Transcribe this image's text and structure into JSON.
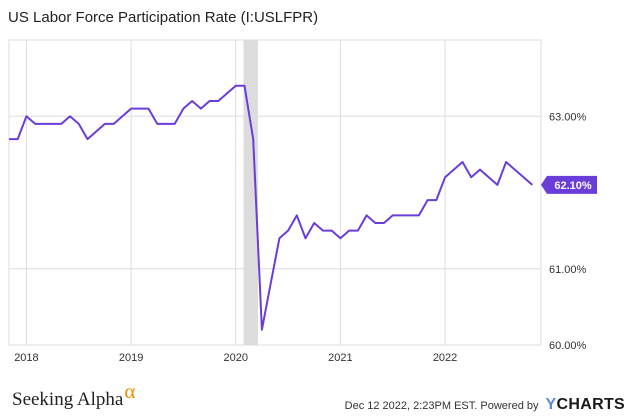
{
  "header": {
    "title": "US Labor Force Participation Rate (I:USLFPR)"
  },
  "chart_data": {
    "type": "line",
    "title": "US Labor Force Participation Rate (I:USLFPR)",
    "xlabel": "",
    "ylabel": "",
    "x_ticks": [
      "2018",
      "2019",
      "2020",
      "2021",
      "2022"
    ],
    "y_ticks": [
      {
        "value": 60.0,
        "label": "60.00%"
      },
      {
        "value": 61.0,
        "label": "61.00%"
      },
      {
        "value": 62.1,
        "label": "62.10%"
      },
      {
        "value": 63.0,
        "label": "63.00%"
      }
    ],
    "ylim": [
      60.0,
      64.0
    ],
    "xlim": [
      "2017-11",
      "2022-12"
    ],
    "recession_shade": {
      "start": "2020-02",
      "end": "2020-04"
    },
    "series": [
      {
        "color": "#6a3ddb",
        "last_value_label": "62.10%",
        "points": [
          [
            "2017-11",
            62.7
          ],
          [
            "2017-12",
            62.7
          ],
          [
            "2018-01",
            63.0
          ],
          [
            "2018-02",
            62.9
          ],
          [
            "2018-03",
            62.9
          ],
          [
            "2018-04",
            62.9
          ],
          [
            "2018-05",
            62.9
          ],
          [
            "2018-06",
            63.0
          ],
          [
            "2018-07",
            62.9
          ],
          [
            "2018-08",
            62.7
          ],
          [
            "2018-09",
            62.8
          ],
          [
            "2018-10",
            62.9
          ],
          [
            "2018-11",
            62.9
          ],
          [
            "2018-12",
            63.0
          ],
          [
            "2019-01",
            63.1
          ],
          [
            "2019-02",
            63.1
          ],
          [
            "2019-03",
            63.1
          ],
          [
            "2019-04",
            62.9
          ],
          [
            "2019-05",
            62.9
          ],
          [
            "2019-06",
            62.9
          ],
          [
            "2019-07",
            63.1
          ],
          [
            "2019-08",
            63.2
          ],
          [
            "2019-09",
            63.1
          ],
          [
            "2019-10",
            63.2
          ],
          [
            "2019-11",
            63.2
          ],
          [
            "2019-12",
            63.3
          ],
          [
            "2020-01",
            63.4
          ],
          [
            "2020-02",
            63.4
          ],
          [
            "2020-03",
            62.7
          ],
          [
            "2020-04",
            60.2
          ],
          [
            "2020-05",
            60.8
          ],
          [
            "2020-06",
            61.4
          ],
          [
            "2020-07",
            61.5
          ],
          [
            "2020-08",
            61.7
          ],
          [
            "2020-09",
            61.4
          ],
          [
            "2020-10",
            61.6
          ],
          [
            "2020-11",
            61.5
          ],
          [
            "2020-12",
            61.5
          ],
          [
            "2021-01",
            61.4
          ],
          [
            "2021-02",
            61.5
          ],
          [
            "2021-03",
            61.5
          ],
          [
            "2021-04",
            61.7
          ],
          [
            "2021-05",
            61.6
          ],
          [
            "2021-06",
            61.6
          ],
          [
            "2021-07",
            61.7
          ],
          [
            "2021-08",
            61.7
          ],
          [
            "2021-09",
            61.7
          ],
          [
            "2021-10",
            61.7
          ],
          [
            "2021-11",
            61.9
          ],
          [
            "2021-12",
            61.9
          ],
          [
            "2022-01",
            62.2
          ],
          [
            "2022-02",
            62.3
          ],
          [
            "2022-03",
            62.4
          ],
          [
            "2022-04",
            62.2
          ],
          [
            "2022-05",
            62.3
          ],
          [
            "2022-06",
            62.2
          ],
          [
            "2022-07",
            62.1
          ],
          [
            "2022-08",
            62.4
          ],
          [
            "2022-09",
            62.3
          ],
          [
            "2022-10",
            62.2
          ],
          [
            "2022-11",
            62.1
          ]
        ]
      }
    ],
    "grid": true
  },
  "footer": {
    "brand_name": "Seeking Alpha",
    "brand_symbol": "α",
    "timestamp": "Dec 12 2022, 2:23PM EST.",
    "powered_by": "Powered by",
    "ycharts_y": "Y",
    "ycharts_rest": "CHARTS"
  }
}
